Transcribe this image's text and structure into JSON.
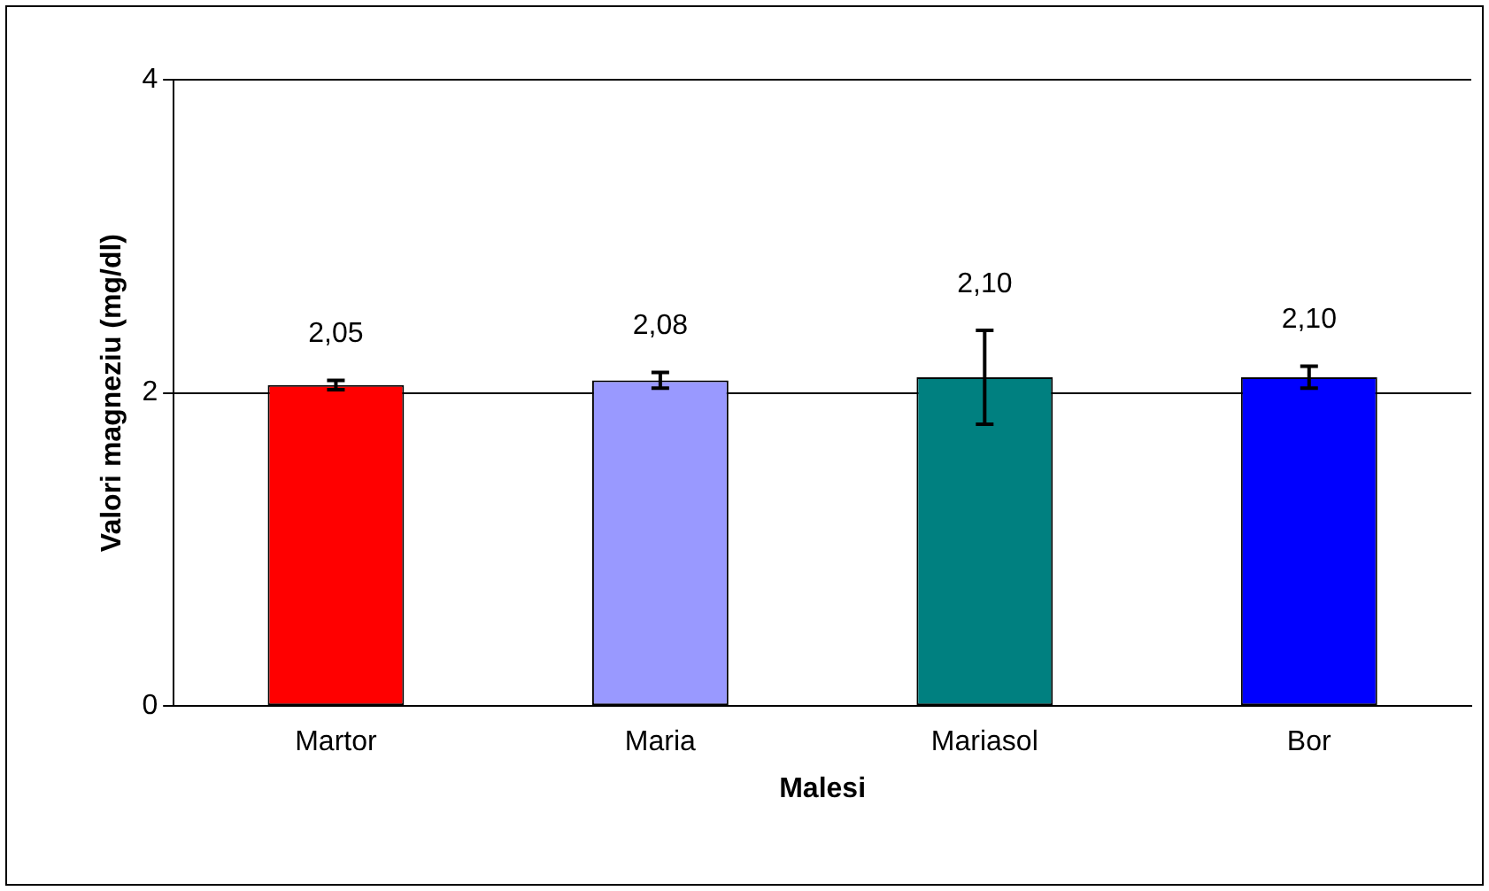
{
  "chart_data": {
    "type": "bar",
    "xlabel": "Malesi",
    "ylabel": "Valori magneziu (mg/dl)",
    "categories": [
      "Martor",
      "Maria",
      "Mariasol",
      "Bor"
    ],
    "values": [
      2.05,
      2.08,
      2.1,
      2.1
    ],
    "colors": [
      "#ff0000",
      "#9999ff",
      "#008080",
      "#0000ff"
    ],
    "errors": [
      0.03,
      0.05,
      0.3,
      0.07
    ],
    "value_labels": [
      "2,05",
      "2,08",
      "2,10",
      "2,10"
    ],
    "ylim": [
      0,
      4
    ],
    "yticks": [
      0,
      2,
      4
    ],
    "grid": "y",
    "legend": false
  }
}
